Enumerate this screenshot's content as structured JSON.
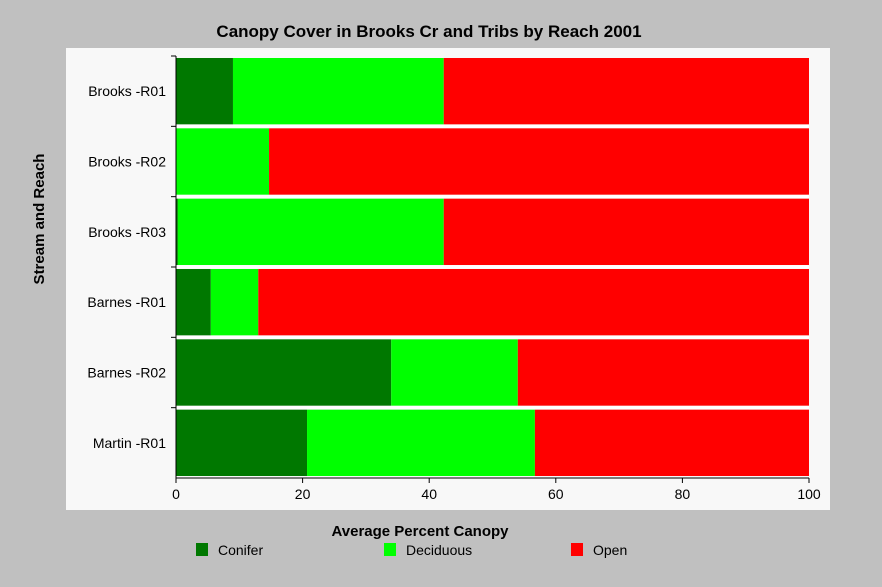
{
  "chart_data": {
    "type": "bar",
    "orientation": "horizontal",
    "stacked": true,
    "title": "Canopy Cover in Brooks Cr and Tribs by Reach 2001",
    "xlabel": "Average Percent Canopy",
    "ylabel": "Stream and Reach",
    "xlim": [
      0,
      100
    ],
    "xticks": [
      0,
      20,
      40,
      60,
      80,
      100
    ],
    "grid": false,
    "legend_position": "bottom",
    "categories": [
      "Brooks -R01",
      "Brooks -R02",
      "Brooks -R03",
      "Barnes -R01",
      "Barnes -R02",
      "Martin -R01"
    ],
    "series": [
      {
        "name": "Conifer",
        "color": "#007800",
        "values": [
          9,
          0,
          0.3,
          5.5,
          34,
          20.7
        ]
      },
      {
        "name": "Deciduous",
        "color": "#00ff00",
        "values": [
          33.3,
          14.7,
          42,
          7.5,
          20,
          36
        ]
      },
      {
        "name": "Open",
        "color": "#ff0000",
        "values": [
          57.7,
          85.3,
          57.7,
          87,
          46,
          43.3
        ]
      }
    ]
  }
}
